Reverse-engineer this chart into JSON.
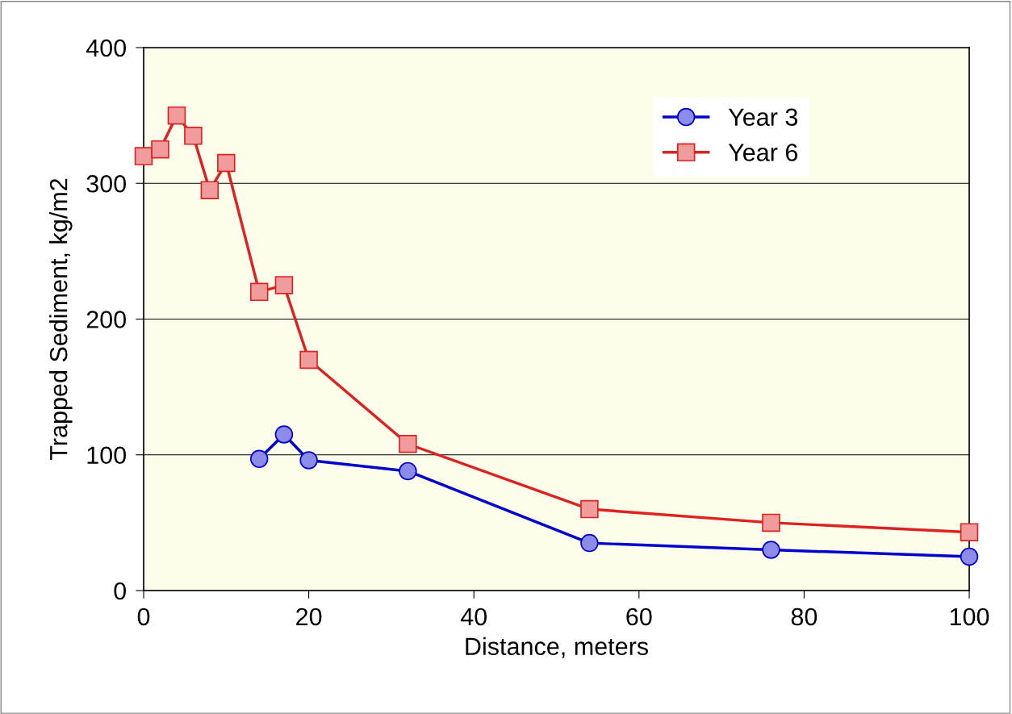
{
  "chart_data": {
    "type": "line",
    "xlabel": "Distance, meters",
    "ylabel": "Trapped Sediment, kg/m2",
    "xlim": [
      0,
      100
    ],
    "xticks": [
      0,
      20,
      40,
      60,
      80,
      100
    ],
    "ylim": [
      0,
      400
    ],
    "yticks": [
      0,
      100,
      200,
      300,
      400
    ],
    "grid": "y",
    "legend": "top right",
    "series": [
      {
        "name": "Year 3",
        "color": "#0000cc",
        "marker": "circle",
        "x": [
          14,
          17,
          20,
          32,
          54,
          76,
          100
        ],
        "values": [
          97,
          115,
          96,
          88,
          35,
          30,
          25
        ]
      },
      {
        "name": "Year 6",
        "color": "#dd2222",
        "marker": "square",
        "x": [
          0,
          2,
          4,
          6,
          8,
          10,
          14,
          17,
          20,
          32,
          54,
          76,
          100
        ],
        "values": [
          320,
          325,
          350,
          335,
          295,
          315,
          220,
          225,
          170,
          108,
          60,
          50,
          43
        ]
      }
    ]
  }
}
